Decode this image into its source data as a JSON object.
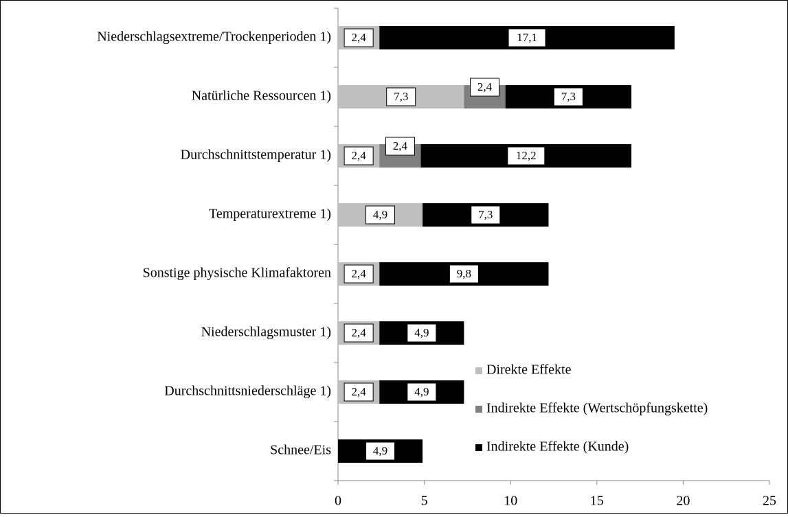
{
  "chart_data": {
    "type": "stacked-bar-horizontal",
    "categories": [
      "Niederschlagsextreme/Trockenperioden 1)",
      "Natürliche Ressourcen 1)",
      "Durchschnittstemperatur 1)",
      "Temperaturextreme 1)",
      "Sonstige physische Klimafaktoren",
      "Niederschlagsmuster 1)",
      "Durchschnittsniederschläge 1)",
      "Schnee/Eis"
    ],
    "series": [
      {
        "name": "Direkte Effekte",
        "color": "#bfbfbf",
        "values": [
          2.4,
          7.3,
          2.4,
          4.9,
          2.4,
          2.4,
          2.4,
          null
        ],
        "value_labels": [
          "2,4",
          "7,3",
          "2,4",
          "4,9",
          "2,4",
          "2,4",
          "2,4",
          null
        ]
      },
      {
        "name": "Indirekte Effekte (Wertschöpfungskette)",
        "color": "#808080",
        "values": [
          null,
          2.4,
          2.4,
          null,
          null,
          null,
          null,
          null
        ],
        "value_labels": [
          null,
          "2,4",
          "2,4",
          null,
          null,
          null,
          null,
          null
        ]
      },
      {
        "name": "Indirekte Effekte (Kunde)",
        "color": "#000000",
        "values": [
          17.1,
          7.3,
          12.2,
          7.3,
          9.8,
          4.9,
          4.9,
          4.9
        ],
        "value_labels": [
          "17,1",
          "7,3",
          "12,2",
          "7,3",
          "9,8",
          "4,9",
          "4,9",
          "4,9"
        ]
      }
    ],
    "xlim": [
      0,
      25
    ],
    "xticks": [
      0,
      5,
      10,
      15,
      20,
      25
    ]
  }
}
